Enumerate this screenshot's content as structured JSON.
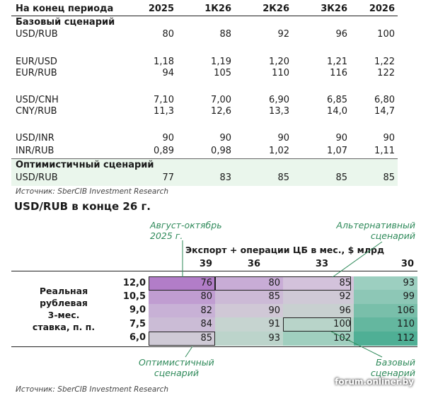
{
  "table": {
    "headers": [
      "На конец периода",
      "2025",
      "1К26",
      "2К26",
      "3К26",
      "2026"
    ],
    "base_section": "Базовый сценарий",
    "rows": [
      {
        "label": "USD/RUB",
        "values": [
          "80",
          "88",
          "92",
          "96",
          "100"
        ]
      },
      {
        "label": "EUR/USD",
        "values": [
          "1,18",
          "1,19",
          "1,20",
          "1,21",
          "1,22"
        ]
      },
      {
        "label": "EUR/RUB",
        "values": [
          "94",
          "105",
          "110",
          "116",
          "122"
        ]
      },
      {
        "label": "USD/CNH",
        "values": [
          "7,10",
          "7,00",
          "6,90",
          "6,85",
          "6,80"
        ]
      },
      {
        "label": "CNY/RUB",
        "values": [
          "11,3",
          "12,6",
          "13,3",
          "14,0",
          "14,7"
        ]
      },
      {
        "label": "USD/INR",
        "values": [
          "90",
          "90",
          "90",
          "90",
          "90"
        ]
      },
      {
        "label": "INR/RUB",
        "values": [
          "0,89",
          "0,98",
          "1,02",
          "1,07",
          "1,11"
        ]
      }
    ],
    "opt_section": "Оптимистичный сценарий",
    "opt_row": {
      "label": "USD/RUB",
      "values": [
        "77",
        "83",
        "85",
        "85",
        "85"
      ]
    },
    "source": "Источник: SberCIB Investment Research"
  },
  "matrix": {
    "title": "USD/RUB в конце 26 г.",
    "ann_top_left": [
      "Август-октябрь",
      "2025 г."
    ],
    "ann_top_right": [
      "Альтернативный",
      "сценарий"
    ],
    "col_title": "Экспорт + операции ЦБ в мес., $ млрд",
    "cols": [
      "39",
      "36",
      "33",
      "30"
    ],
    "row_title": [
      "Реальная",
      "рублевая",
      "3-мес.",
      "ставка, п. п."
    ],
    "rows": [
      "12,0",
      "10,5",
      "9,0",
      "7,5",
      "6,0"
    ],
    "cells": [
      [
        "76",
        "80",
        "85",
        "93"
      ],
      [
        "80",
        "85",
        "92",
        "99"
      ],
      [
        "82",
        "90",
        "96",
        "106"
      ],
      [
        "84",
        "91",
        "100",
        "110"
      ],
      [
        "85",
        "93",
        "102",
        "112"
      ]
    ],
    "ann_bottom_left": [
      "Оптимистичный",
      "сценарий"
    ],
    "ann_bottom_right": [
      "Базовый",
      "сценарий"
    ],
    "source": "Источник: SberCIB Investment Research"
  },
  "watermark": "forum.onliner.by"
}
